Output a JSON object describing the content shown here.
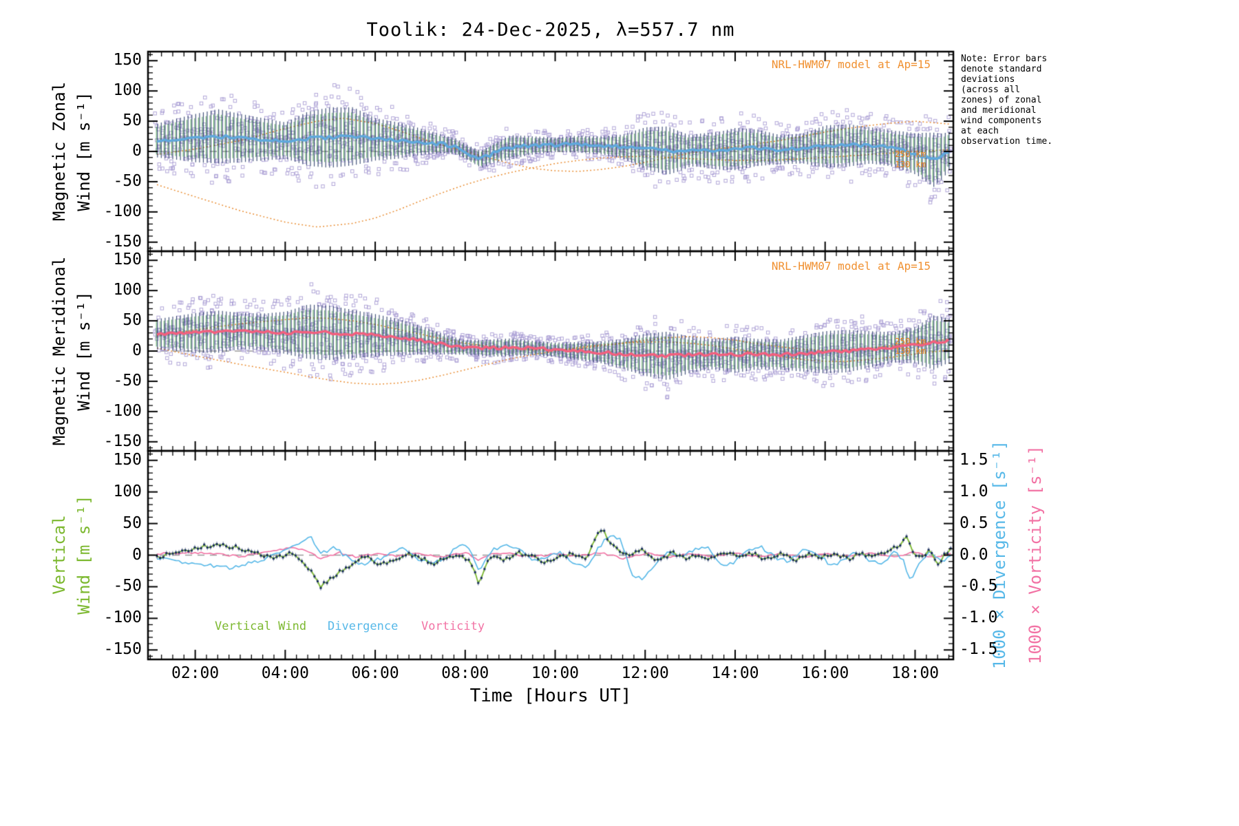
{
  "title": "Toolik: 24-Dec-2025, λ=557.7 nm",
  "note": "Note: Error bars denote standard deviations (across all zones) of zonal and meridional wind components at each observation time.",
  "labels": {
    "xlabel": "Time [Hours UT]",
    "right_divergence": "1000 × Divergence [s⁻¹]",
    "right_vorticity": "1000 × Vorticity [s⁻¹]"
  },
  "panels": [
    {
      "id": "zonal",
      "ylabel_line1": "Magnetic Zonal",
      "ylabel_line2": "Wind [m s⁻¹]",
      "model_annotation": "NRL-HWM07 model at Ap=15",
      "alt_labels": [
        {
          "text": "250 km"
        },
        {
          "text": "130 km"
        }
      ]
    },
    {
      "id": "meridional",
      "ylabel_line1": "Magnetic Meridional",
      "ylabel_line2": "Wind [m s⁻¹]",
      "model_annotation": "NRL-HWM07 model at Ap=15",
      "alt_labels": [
        {
          "text": "250 km"
        },
        {
          "text": "130 km"
        }
      ]
    },
    {
      "id": "vertical",
      "ylabel_line1": "Vertical",
      "ylabel_line2": "Wind [m s⁻¹]"
    }
  ],
  "legend": [
    {
      "label": "Vertical Wind"
    },
    {
      "label": "Divergence"
    },
    {
      "label": "Vorticity"
    }
  ],
  "colors": {
    "axis": "#000000",
    "zero_line": "#999999",
    "zonal_line": "#5FA8DC",
    "meridional_line": "#F2607E",
    "scatter": "#A89CD4",
    "error_bar_dark": "#1B2F5E",
    "error_bar_green": "#3F9C45",
    "model_orange": "#E8831F",
    "annotation_orange": "#F09030",
    "vertical_green": "#7CB82F",
    "divergence_blue": "#56B8E8",
    "vorticity_pink": "#F272A4"
  },
  "axes": {
    "x": {
      "majors": [
        2,
        4,
        6,
        8,
        10,
        12,
        14,
        16,
        18
      ],
      "labels": [
        "02:00",
        "04:00",
        "06:00",
        "08:00",
        "10:00",
        "12:00",
        "14:00",
        "16:00",
        "18:00"
      ],
      "minor_step": 0.25,
      "min": 0.95,
      "max": 18.85
    },
    "y": {
      "majors": [
        150,
        100,
        50,
        0,
        -50,
        -100,
        -150
      ],
      "labels": [
        "150",
        "100",
        "50",
        "0",
        "-50",
        "-100",
        "-150"
      ],
      "minor_step": 10,
      "min": -165,
      "max": 165
    },
    "y_right": {
      "majors": [
        1.5,
        1.0,
        0.5,
        0.0,
        -0.5,
        -1.0,
        -1.5
      ],
      "labels": [
        "1.5",
        "1.0",
        "0.5",
        "0.0",
        "-0.5",
        "-1.0",
        "-1.5"
      ],
      "minor_step": 0.1
    }
  },
  "chart_data": {
    "type": "line",
    "title": "Toolik: 24-Dec-2025, λ=557.7 nm",
    "xlabel": "Time [Hours UT]",
    "x_range": [
      1.15,
      18.8
    ],
    "time_range": [
      1.15,
      18.8
    ],
    "y_wind_range": [
      -165,
      165
    ],
    "y_right_range": [
      -1.65,
      1.65
    ],
    "zonal": {
      "units": "m/s",
      "mean": {
        "x": [
          1.15,
          1.5,
          2,
          2.5,
          3,
          3.5,
          4,
          4.5,
          5,
          5.5,
          6,
          6.5,
          7,
          7.5,
          7.8,
          8.1,
          8.35,
          8.6,
          9,
          9.5,
          10,
          10.5,
          11,
          11.5,
          12,
          12.4,
          12.8,
          13.2,
          13.6,
          14,
          14.5,
          15,
          15.5,
          16,
          16.5,
          17,
          17.4,
          17.8,
          18.1,
          18.4,
          18.6,
          18.8
        ],
        "y": [
          18,
          20,
          22,
          25,
          22,
          20,
          18,
          21,
          23,
          25,
          20,
          18,
          16,
          12,
          8,
          -4,
          -13,
          -4,
          7,
          10,
          11,
          12,
          10,
          8,
          5,
          2,
          0,
          2,
          1,
          4,
          6,
          3,
          5,
          8,
          10,
          10,
          6,
          0,
          -6,
          -14,
          -8,
          4
        ]
      },
      "sigma": {
        "x": [
          1.15,
          2,
          2.5,
          3,
          3.5,
          4,
          4.5,
          5,
          5.5,
          6,
          6.5,
          7,
          7.5,
          8,
          8.5,
          9,
          9.5,
          10,
          10.5,
          11,
          11.5,
          12,
          12.5,
          13,
          13.5,
          14,
          14.5,
          15,
          15.5,
          16,
          16.5,
          17,
          17.5,
          18,
          18.4,
          18.8
        ],
        "y": [
          28,
          40,
          45,
          40,
          35,
          30,
          45,
          50,
          48,
          35,
          30,
          22,
          15,
          12,
          15,
          20,
          15,
          12,
          14,
          15,
          20,
          35,
          40,
          26,
          30,
          35,
          30,
          24,
          25,
          35,
          35,
          30,
          30,
          34,
          45,
          30
        ]
      },
      "model_250km": {
        "x": [
          1.15,
          2,
          3,
          4,
          4.7,
          5.5,
          6,
          6.5,
          7,
          7.5,
          8,
          8.5,
          9,
          9.5,
          10,
          10.5,
          11,
          11.5,
          12,
          13,
          14,
          15,
          16,
          17,
          18,
          18.8
        ],
        "y": [
          -55,
          -75,
          -98,
          -117,
          -125,
          -119,
          -110,
          -97,
          -82,
          -68,
          -55,
          -44,
          -35,
          -27,
          -20,
          -15,
          -11,
          -9,
          -8,
          -12,
          -15,
          -14,
          -10,
          -5,
          0,
          3
        ]
      },
      "model_130km": {
        "x": [
          1.15,
          2,
          3,
          4,
          4.7,
          5.3,
          6,
          6.5,
          7,
          7.5,
          8,
          8.5,
          9,
          9.5,
          10,
          10.5,
          11,
          11.5,
          12,
          12.5,
          13,
          13.5,
          14,
          14.5,
          15,
          15.5,
          16,
          16.5,
          17,
          17.5,
          18,
          18.8
        ],
        "y": [
          -5,
          4,
          18,
          38,
          50,
          55,
          46,
          35,
          22,
          10,
          0,
          -10,
          -20,
          -28,
          -32,
          -33,
          -30,
          -25,
          -18,
          -10,
          -3,
          3,
          8,
          13,
          18,
          25,
          32,
          38,
          43,
          47,
          50,
          45
        ]
      }
    },
    "meridional": {
      "units": "m/s",
      "mean": {
        "x": [
          1.15,
          2,
          2.5,
          3,
          3.5,
          4,
          4.5,
          5,
          5.5,
          6,
          6.5,
          7,
          7.3,
          7.6,
          8,
          8.5,
          9,
          9.5,
          10,
          10.5,
          11,
          11.5,
          12,
          12.5,
          13,
          13.5,
          14,
          14.5,
          15,
          15.5,
          16,
          16.5,
          17,
          17.5,
          18,
          18.4,
          18.8
        ],
        "y": [
          28,
          30,
          32,
          33,
          32,
          30,
          32,
          30,
          28,
          26,
          23,
          18,
          14,
          10,
          6,
          5,
          6,
          5,
          2,
          0,
          -2,
          -5,
          -6,
          -8,
          -6,
          -5,
          -6,
          -5,
          -6,
          -4,
          -2,
          0,
          3,
          6,
          10,
          14,
          18
        ]
      },
      "sigma": {
        "x": [
          1.15,
          2,
          2.5,
          3,
          3.5,
          4,
          4.5,
          5,
          5.5,
          6,
          6.5,
          7,
          7.5,
          8,
          8.5,
          9,
          9.5,
          10,
          10.5,
          11,
          11.5,
          12,
          12.5,
          13,
          13.5,
          14,
          14.5,
          15,
          15.5,
          16,
          16.5,
          17,
          17.5,
          18,
          18.4,
          18.8
        ],
        "y": [
          25,
          33,
          35,
          30,
          30,
          35,
          45,
          45,
          40,
          35,
          30,
          24,
          17,
          12,
          14,
          15,
          12,
          12,
          15,
          18,
          25,
          35,
          40,
          30,
          25,
          30,
          25,
          25,
          30,
          35,
          35,
          30,
          25,
          30,
          45,
          35
        ]
      },
      "model_250km": {
        "x": [
          1.15,
          2,
          3,
          4,
          4.5,
          5,
          5.5,
          6,
          6.5,
          7,
          7.5,
          8,
          8.5,
          9,
          9.5,
          10,
          10.5,
          11,
          11.5,
          12,
          12.5,
          13,
          13.5,
          14,
          14.5,
          15,
          15.5,
          16,
          16.5,
          17,
          17.5,
          18,
          18.8
        ],
        "y": [
          5,
          -8,
          -22,
          -35,
          -42,
          -48,
          -53,
          -55,
          -53,
          -48,
          -40,
          -31,
          -22,
          -13,
          -6,
          0,
          6,
          10,
          13,
          15,
          15,
          13,
          9,
          3,
          -3,
          -9,
          -14,
          -17,
          -17,
          -14,
          -10,
          -5,
          2
        ]
      },
      "model_130km": {
        "x": [
          1.15,
          2,
          3,
          4,
          4.5,
          5,
          5.5,
          6,
          6.5,
          7,
          7.5,
          8,
          8.5,
          9,
          9.5,
          10,
          10.5,
          11,
          11.5,
          12,
          12.5,
          13,
          13.5,
          14,
          14.5,
          15,
          15.5,
          16,
          16.5,
          17,
          17.5,
          18,
          18.8
        ],
        "y": [
          25,
          35,
          45,
          52,
          55,
          54,
          50,
          44,
          36,
          28,
          20,
          13,
          8,
          4,
          2,
          2,
          4,
          8,
          13,
          18,
          22,
          24,
          22,
          18,
          12,
          7,
          3,
          1,
          2,
          5,
          9,
          13,
          20
        ]
      }
    },
    "vertical_panel": {
      "vertical_wind_ms": {
        "x": [
          1.15,
          1.6,
          2,
          2.3,
          2.6,
          2.9,
          3.2,
          3.5,
          3.8,
          4.1,
          4.4,
          4.65,
          4.8,
          5,
          5.2,
          5.5,
          5.8,
          6.1,
          6.4,
          6.7,
          7,
          7.3,
          7.6,
          7.9,
          8.1,
          8.3,
          8.45,
          8.6,
          8.9,
          9.2,
          9.5,
          9.8,
          10.1,
          10.4,
          10.7,
          10.95,
          11.05,
          11.2,
          11.4,
          11.7,
          12,
          12.3,
          12.6,
          12.9,
          13.2,
          13.5,
          13.8,
          14.1,
          14.4,
          14.7,
          15,
          15.3,
          15.6,
          15.9,
          16.2,
          16.5,
          16.8,
          17.1,
          17.4,
          17.65,
          17.8,
          17.95,
          18.1,
          18.3,
          18.5,
          18.7,
          18.8
        ],
        "y": [
          -2,
          5,
          10,
          15,
          16,
          12,
          5,
          0,
          -3,
          2,
          -10,
          -35,
          -50,
          -38,
          -28,
          -12,
          -2,
          -15,
          -8,
          3,
          -5,
          -12,
          -5,
          2,
          -10,
          -44,
          -20,
          2,
          -8,
          4,
          -3,
          -10,
          -4,
          3,
          -6,
          38,
          40,
          22,
          8,
          2,
          8,
          -10,
          3,
          -4,
          2,
          -6,
          5,
          -4,
          3,
          -7,
          4,
          -8,
          2,
          -5,
          4,
          -6,
          2,
          -3,
          8,
          12,
          30,
          8,
          -5,
          8,
          -14,
          5,
          12
        ]
      },
      "divergence_x1000": {
        "x": [
          1.15,
          1.6,
          2,
          2.4,
          2.8,
          3.2,
          3.6,
          4,
          4.3,
          4.55,
          4.8,
          5.1,
          5.4,
          5.7,
          6,
          6.3,
          6.6,
          6.9,
          7.2,
          7.5,
          7.8,
          8.05,
          8.3,
          8.6,
          8.9,
          9.2,
          9.5,
          9.8,
          10.1,
          10.4,
          10.7,
          11,
          11.2,
          11.45,
          11.7,
          11.95,
          12.2,
          12.5,
          12.8,
          13.1,
          13.4,
          13.7,
          14,
          14.3,
          14.6,
          14.9,
          15.2,
          15.5,
          15.8,
          16.1,
          16.4,
          16.7,
          17,
          17.3,
          17.55,
          17.75,
          17.9,
          18.1,
          18.35,
          18.6,
          18.8
        ],
        "y": [
          -0.05,
          -0.1,
          -0.13,
          -0.17,
          -0.2,
          -0.13,
          -0.05,
          0.08,
          0.18,
          0.3,
          0.02,
          0.12,
          -0.05,
          -0.15,
          -0.08,
          0.0,
          0.1,
          -0.05,
          -0.12,
          -0.08,
          0.12,
          0.18,
          -0.25,
          0.08,
          0.15,
          0.1,
          -0.1,
          -0.05,
          0.05,
          -0.12,
          -0.18,
          0.15,
          0.3,
          0.25,
          -0.3,
          -0.38,
          -0.2,
          0.08,
          -0.05,
          0.1,
          0.15,
          -0.18,
          -0.1,
          0.08,
          0.12,
          -0.05,
          -0.1,
          0.1,
          0.05,
          -0.15,
          -0.1,
          0.05,
          -0.08,
          -0.12,
          0.08,
          -0.1,
          -0.42,
          -0.1,
          0.05,
          -0.1,
          0.02
        ]
      },
      "vorticity_x1000": {
        "x": [
          1.15,
          2,
          2.5,
          3,
          3.5,
          4,
          4.2,
          4.5,
          4.8,
          5.2,
          5.6,
          6,
          6.5,
          7,
          7.5,
          8,
          8.3,
          8.6,
          9,
          9.5,
          10,
          10.5,
          11,
          11.5,
          12,
          12.5,
          13,
          13.5,
          14,
          14.5,
          15,
          15.5,
          16,
          16.5,
          17,
          17.5,
          18,
          18.4,
          18.8
        ],
        "y": [
          0.02,
          0.04,
          0.02,
          -0.02,
          0.03,
          0.1,
          0.12,
          0.05,
          -0.06,
          0.04,
          -0.03,
          0.02,
          -0.02,
          0.03,
          -0.04,
          0.05,
          -0.08,
          0.03,
          0.02,
          -0.03,
          0.02,
          -0.02,
          0.04,
          -0.05,
          0.03,
          -0.03,
          0.02,
          -0.02,
          0.03,
          -0.02,
          0.02,
          -0.03,
          0.02,
          -0.02,
          0.03,
          -0.02,
          0.04,
          -0.04,
          0.02
        ]
      }
    }
  }
}
